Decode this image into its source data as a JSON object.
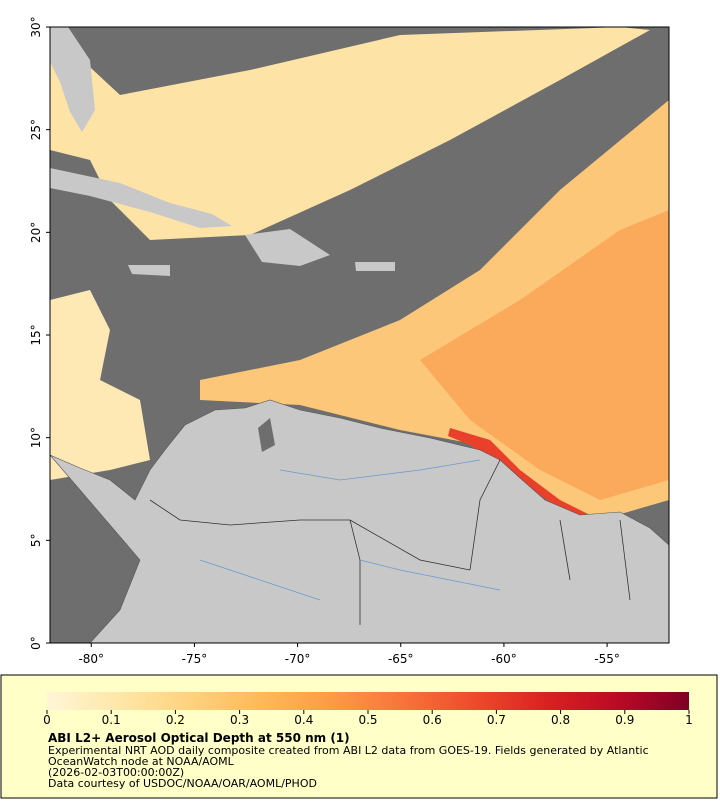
{
  "chart_data": {
    "type": "map",
    "xlim": [
      -82,
      -52
    ],
    "ylim": [
      0,
      30
    ],
    "xticks": [
      {
        "value": -80,
        "label": "-80°"
      },
      {
        "value": -75,
        "label": "-75°"
      },
      {
        "value": -70,
        "label": "-70°"
      },
      {
        "value": -65,
        "label": "-65°"
      },
      {
        "value": -60,
        "label": "-60°"
      },
      {
        "value": -55,
        "label": "-55°"
      }
    ],
    "yticks": [
      {
        "value": 0,
        "label": "0°"
      },
      {
        "value": 5,
        "label": "5°"
      },
      {
        "value": 10,
        "label": "10°"
      },
      {
        "value": 15,
        "label": "15°"
      },
      {
        "value": 20,
        "label": "20°"
      },
      {
        "value": 25,
        "label": "25°"
      },
      {
        "value": 30,
        "label": "30°"
      }
    ],
    "colorbar": {
      "lim": [
        0,
        1
      ],
      "ticks": [
        0,
        0.1,
        0.2,
        0.3,
        0.4,
        0.5,
        0.6,
        0.7,
        0.8,
        0.9,
        1
      ],
      "colors": [
        "#fff6d8",
        "#fee7a8",
        "#fed27f",
        "#fdb95a",
        "#fc9a45",
        "#f8733a",
        "#ee4a2c",
        "#da2121",
        "#bb0a26",
        "#800026"
      ]
    },
    "title": "ABI L2+ Aerosol Optical Depth at 550 nm (1)",
    "caption": [
      "Experimental NRT AOD daily composite created from ABI L2 data from GOES-19. Fields generated by Atlantic",
      "OceanWatch node at NOAA/AOML",
      "(2026-02-03T00:00:00Z)",
      "Data courtesy of USDOC/NOAA/OAR/AOML/PHOD"
    ]
  }
}
